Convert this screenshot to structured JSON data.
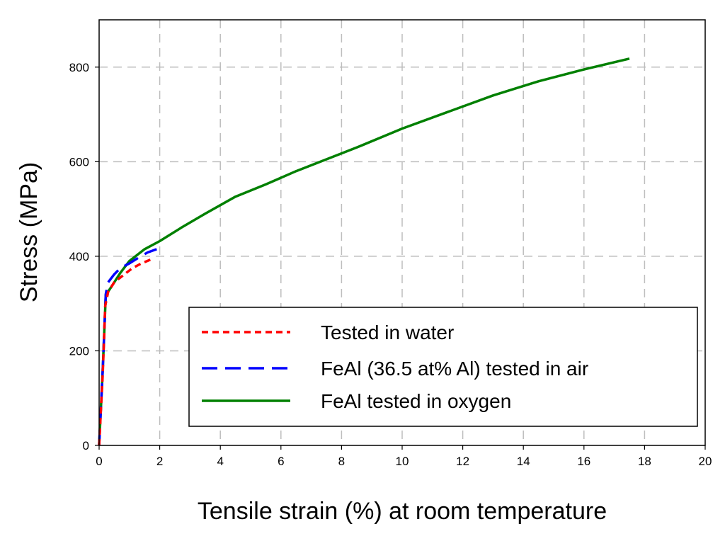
{
  "chart_data": {
    "type": "line",
    "title": "",
    "xlabel": "Tensile strain (%) at room temperature",
    "ylabel": "Stress (MPa)",
    "xlim": [
      0,
      20
    ],
    "ylim": [
      0,
      900
    ],
    "x_ticks": [
      "0",
      "2",
      "4",
      "6",
      "8",
      "10",
      "12",
      "14",
      "16",
      "18",
      "20"
    ],
    "y_ticks": [
      "0",
      "200",
      "400",
      "600",
      "800"
    ],
    "grid": true,
    "grid_style": "dashed",
    "legend_position": "bottom-right",
    "series": [
      {
        "name": "Tested in water",
        "color": "#ff0000",
        "line_style": "short-dash",
        "points": [
          [
            0,
            0
          ],
          [
            0.12,
            150
          ],
          [
            0.2,
            295
          ],
          [
            0.3,
            325
          ],
          [
            0.5,
            345
          ],
          [
            0.8,
            360
          ],
          [
            1.1,
            375
          ],
          [
            1.4,
            385
          ],
          [
            1.7,
            393
          ]
        ]
      },
      {
        "name": "FeAl (36.5 at% Al) tested in air",
        "color": "#0000ff",
        "line_style": "long-dash",
        "points": [
          [
            0,
            0
          ],
          [
            0.12,
            160
          ],
          [
            0.22,
            320
          ],
          [
            0.3,
            345
          ],
          [
            0.5,
            362
          ],
          [
            0.7,
            375
          ],
          [
            1.0,
            385
          ],
          [
            1.3,
            397
          ],
          [
            1.6,
            408
          ],
          [
            1.9,
            415
          ]
        ]
      },
      {
        "name": "FeAl tested in oxygen",
        "color": "#008000",
        "line_style": "solid",
        "points": [
          [
            0,
            0
          ],
          [
            0.12,
            160
          ],
          [
            0.22,
            318
          ],
          [
            0.4,
            335
          ],
          [
            0.7,
            365
          ],
          [
            1.0,
            390
          ],
          [
            1.5,
            415
          ],
          [
            2.0,
            432
          ],
          [
            2.7,
            460
          ],
          [
            3.5,
            490
          ],
          [
            4.5,
            526
          ],
          [
            5.5,
            552
          ],
          [
            6.5,
            580
          ],
          [
            7.5,
            605
          ],
          [
            8.5,
            630
          ],
          [
            10.0,
            670
          ],
          [
            11.5,
            705
          ],
          [
            13.0,
            740
          ],
          [
            14.5,
            770
          ],
          [
            16.0,
            795
          ],
          [
            17.5,
            818
          ]
        ]
      }
    ]
  }
}
